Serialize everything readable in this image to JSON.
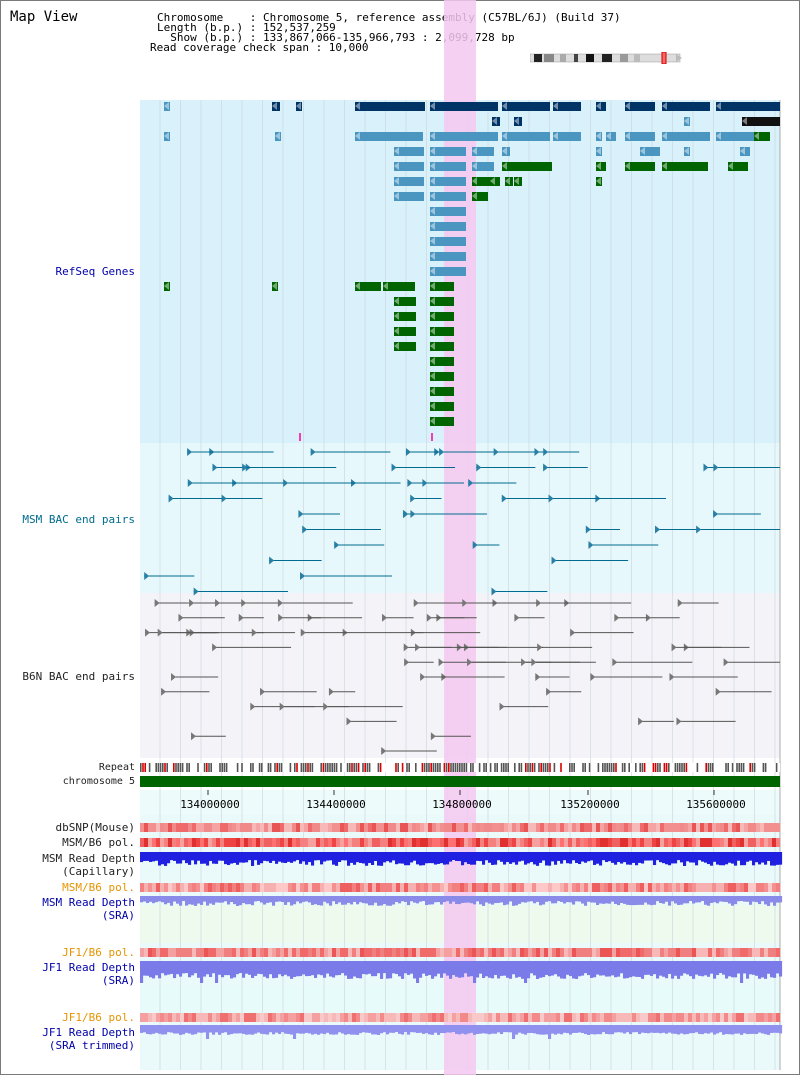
{
  "title": "Map View",
  "info": {
    "line1": "Chromosome    : Chromosome 5, reference assembly (C57BL/6J) (Build 37)",
    "line2": "Length (b.p.) : 152,537,259",
    "line3": "  Show (b.p.) : 133,867,066-135,966,793 : 2,099,728 bp",
    "line4": "Read coverage check span : 10,000"
  },
  "tracks": {
    "refseq": "RefSeq Genes",
    "msm_bac": "MSM BAC end pairs",
    "b6n_bac": "B6N BAC end pairs",
    "repeat": "Repeat",
    "chromosome": "chromosome 5",
    "dbsnp": "dbSNP(Mouse)",
    "msm_pol": "MSM/B6 pol.",
    "msm_depth_cap_1": "MSM Read Depth",
    "msm_depth_cap_2": "(Capillary)",
    "msm_pol_sra": "MSM/B6 pol.",
    "msm_depth_sra_1": "MSM Read Depth",
    "msm_depth_sra_2": "(SRA)",
    "jf1_pol": "JF1/B6 pol.",
    "jf1_depth_1": "JF1 Read Depth",
    "jf1_depth_2": "(SRA)",
    "jf1_pol2": "JF1/B6 pol.",
    "jf1_trim_1": "JF1 Read Depth",
    "jf1_trim_2": "(SRA trimmed)"
  },
  "axis": {
    "ticks": [
      "134000000",
      "134400000",
      "134800000",
      "135200000",
      "135600000"
    ]
  },
  "colors": {
    "refseq_bg": "#d9f1fb",
    "gene_dark": "#003366",
    "gene_light": "#4a96c0",
    "gene_green": "#006400",
    "highlight": "#f5c8f0",
    "chromosome": "#006400"
  }
}
